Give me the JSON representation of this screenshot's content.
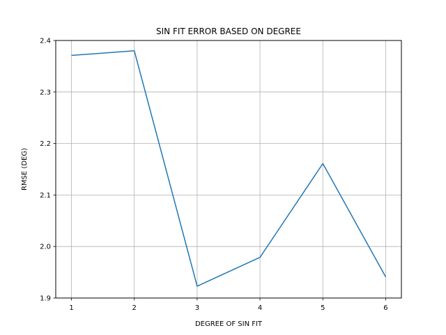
{
  "chart_data": {
    "type": "line",
    "title": "SIN FIT ERROR BASED ON DEGREE",
    "xlabel": "DEGREE OF SIN FIT",
    "ylabel": "RMSE (DEG)",
    "x": [
      1,
      2,
      3,
      4,
      5,
      6
    ],
    "series": [
      {
        "values": [
          2.371,
          2.38,
          1.923,
          1.979,
          2.161,
          1.941
        ],
        "color": "#1f77b4"
      }
    ],
    "xlim": [
      0.75,
      6.25
    ],
    "ylim": [
      1.9,
      2.4
    ],
    "xticks": [
      1,
      2,
      3,
      4,
      5,
      6
    ],
    "xtick_labels": [
      "1",
      "2",
      "3",
      "4",
      "5",
      "6"
    ],
    "yticks": [
      1.9,
      2.0,
      2.1,
      2.2,
      2.3,
      2.4
    ],
    "ytick_labels": [
      "1.9",
      "2.0",
      "2.1",
      "2.2",
      "2.3",
      "2.4"
    ],
    "grid": true,
    "colors": {
      "grid": "#b0b0b0",
      "line": "#1f77b4",
      "axes": "#000000"
    }
  }
}
